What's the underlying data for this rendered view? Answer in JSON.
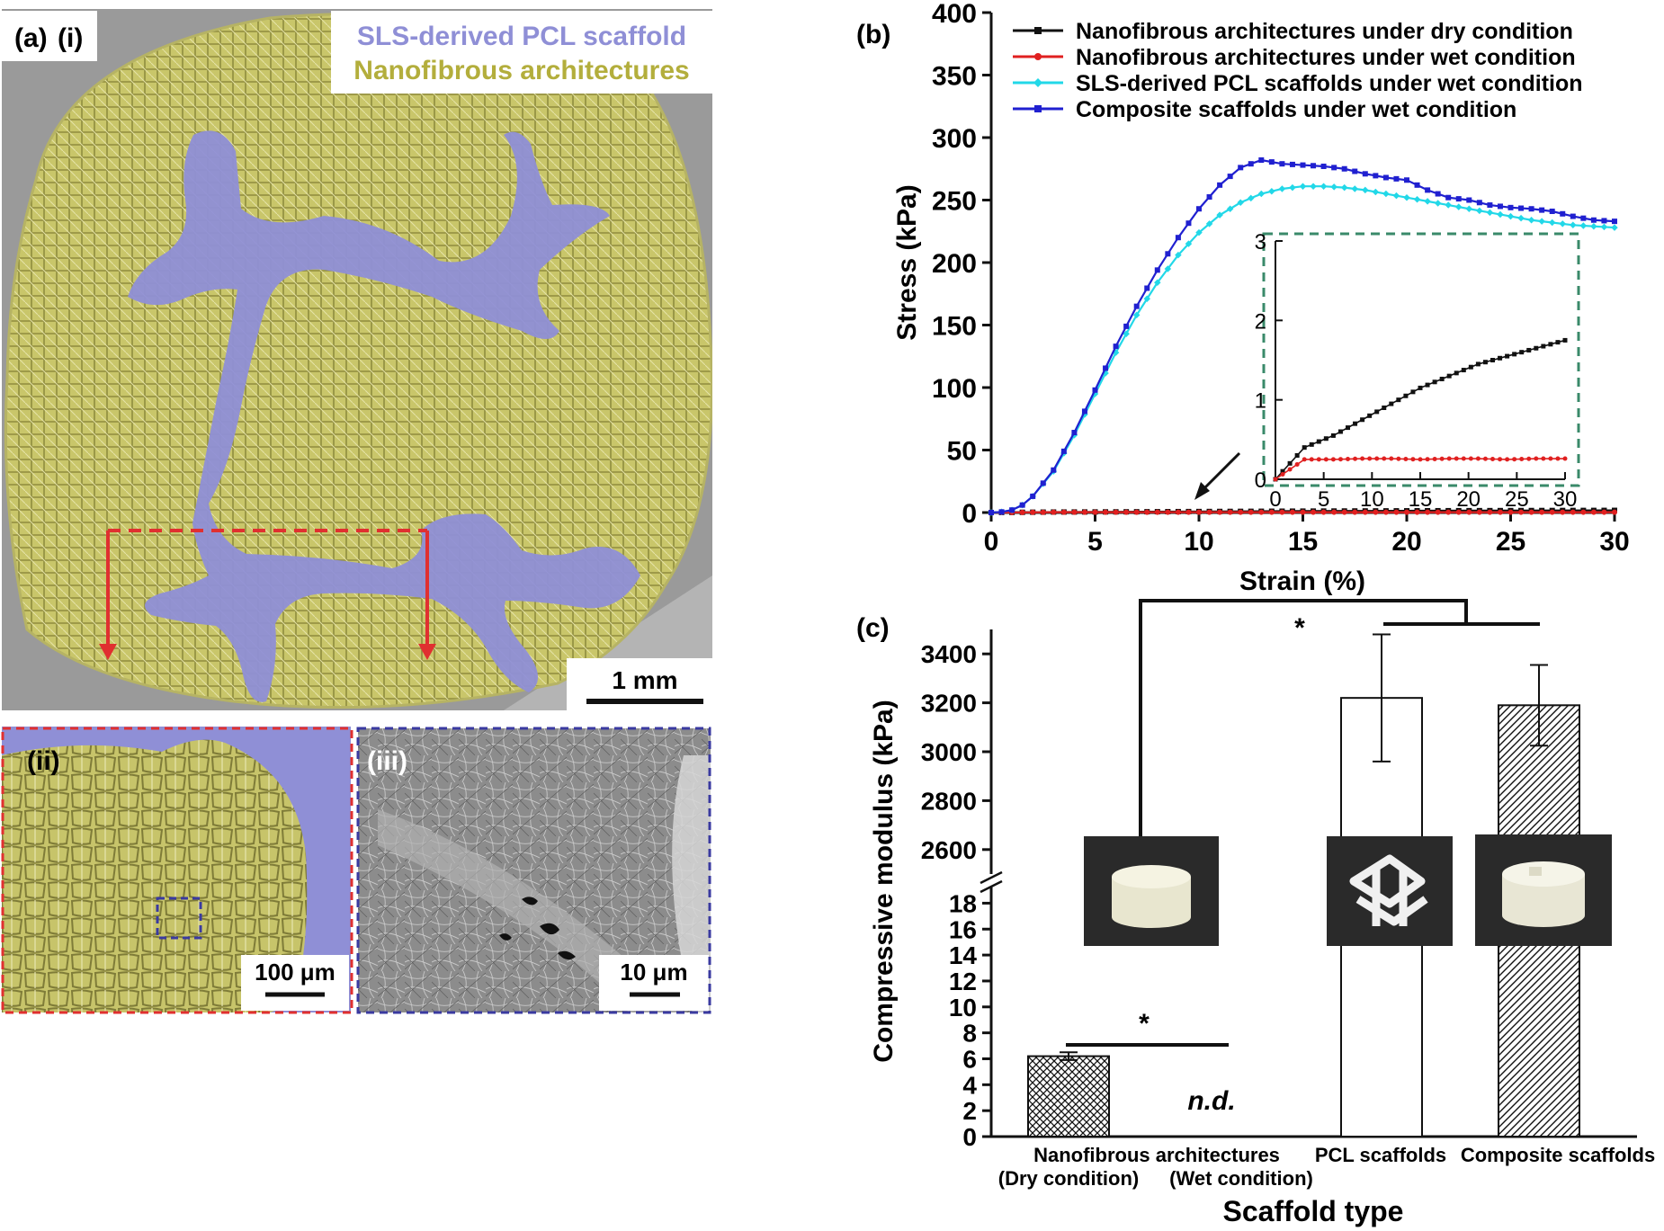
{
  "panel_a": {
    "label_main": "(a)",
    "label_i": "(i)",
    "label_ii": "(ii)",
    "label_iii": "(iii)",
    "legend_scaffold": "SLS-derived PCL scaffold",
    "legend_nanofibrous": "Nanofibrous architectures",
    "scalebar_i": "1 mm",
    "scalebar_ii": "100 μm",
    "scalebar_iii": "10 μm",
    "colors": {
      "scaffold": "#8f8fd6",
      "nanofibrous": "#c9c66a",
      "sem_bg": "#9a9a9a",
      "red_box": "#e03030",
      "blue_box": "#3a3aa0"
    }
  },
  "chart_data": [
    {
      "id": "b",
      "type": "line",
      "panel_label": "(b)",
      "xlabel": "Strain (%)",
      "ylabel": "Stress (kPa)",
      "xlim": [
        0,
        30
      ],
      "ylim": [
        0,
        400
      ],
      "xticks": [
        0,
        5,
        10,
        15,
        20,
        25,
        30
      ],
      "yticks": [
        0,
        50,
        100,
        150,
        200,
        250,
        300,
        350,
        400
      ],
      "legend_position": "top",
      "series": [
        {
          "name": "Nanofibrous architectures under dry condition",
          "color": "#111111",
          "marker": "square",
          "x": [
            0,
            3,
            6,
            9,
            12,
            15,
            18,
            21,
            24,
            27,
            30
          ],
          "y": [
            0,
            0.4,
            0.55,
            0.75,
            0.95,
            1.15,
            1.3,
            1.45,
            1.55,
            1.65,
            1.75
          ]
        },
        {
          "name": "Nanofibrous architectures under wet condition",
          "color": "#e02020",
          "marker": "circle",
          "x": [
            0,
            3,
            6,
            9,
            12,
            15,
            18,
            21,
            24,
            27,
            30
          ],
          "y": [
            0,
            0.25,
            0.25,
            0.26,
            0.26,
            0.25,
            0.26,
            0.26,
            0.25,
            0.26,
            0.26
          ]
        },
        {
          "name": "SLS-derived PCL scaffolds under wet condition",
          "color": "#22d8e8",
          "marker": "diamond",
          "x": [
            0,
            0.5,
            1,
            1.5,
            2,
            3,
            4,
            5,
            6,
            7,
            8,
            9,
            10,
            11,
            12,
            13,
            14,
            15,
            16,
            17,
            18,
            19,
            20,
            21,
            22,
            23,
            24,
            25,
            26,
            27,
            28,
            29,
            30
          ],
          "y": [
            0,
            0.5,
            2,
            6,
            13,
            33,
            62,
            95,
            128,
            158,
            184,
            206,
            224,
            238,
            248,
            255,
            259,
            261,
            261,
            260,
            258,
            255,
            252,
            249,
            246,
            243,
            240,
            237,
            234,
            232,
            230,
            229,
            228
          ]
        },
        {
          "name": "Composite scaffolds under wet condition",
          "color": "#2020d0",
          "marker": "square",
          "x": [
            0,
            0.5,
            1,
            1.5,
            2,
            3,
            4,
            5,
            6,
            7,
            8,
            9,
            10,
            11,
            12,
            13,
            14,
            15,
            16,
            17,
            18,
            19,
            20,
            21,
            22,
            23,
            24,
            25,
            26,
            27,
            28,
            29,
            30
          ],
          "y": [
            0,
            0.5,
            2,
            6,
            13,
            34,
            64,
            98,
            133,
            165,
            194,
            220,
            243,
            262,
            276,
            282,
            279,
            278,
            277,
            275,
            271,
            268,
            266,
            258,
            252,
            250,
            246,
            244,
            243,
            241,
            237,
            234,
            233
          ]
        }
      ],
      "inset": {
        "xlim": [
          0,
          30
        ],
        "ylim": [
          0,
          3
        ],
        "xticks": [
          0,
          5,
          10,
          15,
          20,
          25,
          30
        ],
        "yticks": [
          0,
          1,
          2,
          3
        ],
        "border_color": "#3a8a6a"
      }
    },
    {
      "id": "c",
      "type": "bar",
      "panel_label": "(c)",
      "xlabel": "Scaffold type",
      "ylabel": "Compressive modulus (kPa)",
      "axis_break": true,
      "ylim_lower": [
        0,
        19
      ],
      "ylim_upper": [
        2500,
        3500
      ],
      "yticks_lower": [
        0,
        2,
        4,
        6,
        8,
        10,
        12,
        14,
        16,
        18
      ],
      "yticks_upper": [
        2600,
        2800,
        3000,
        3200,
        3400
      ],
      "categories": [
        "Nanofibrous architectures (Dry condition)",
        "Nanofibrous architectures (Wet condition)",
        "PCL scaffolds",
        "Composite scaffolds"
      ],
      "category_labels": {
        "group_top": "Nanofibrous architectures",
        "dry": "(Dry condition)",
        "wet": "(Wet condition)",
        "pcl": "PCL scaffolds",
        "composite": "Composite scaffolds"
      },
      "values": [
        6.2,
        null,
        3220,
        3190
      ],
      "errors": [
        0.3,
        null,
        260,
        165
      ],
      "patterns": [
        "crosshatch",
        "none",
        "none",
        "diagonal"
      ],
      "not_detected_label": "n.d.",
      "significance": [
        "*",
        "*"
      ]
    }
  ]
}
